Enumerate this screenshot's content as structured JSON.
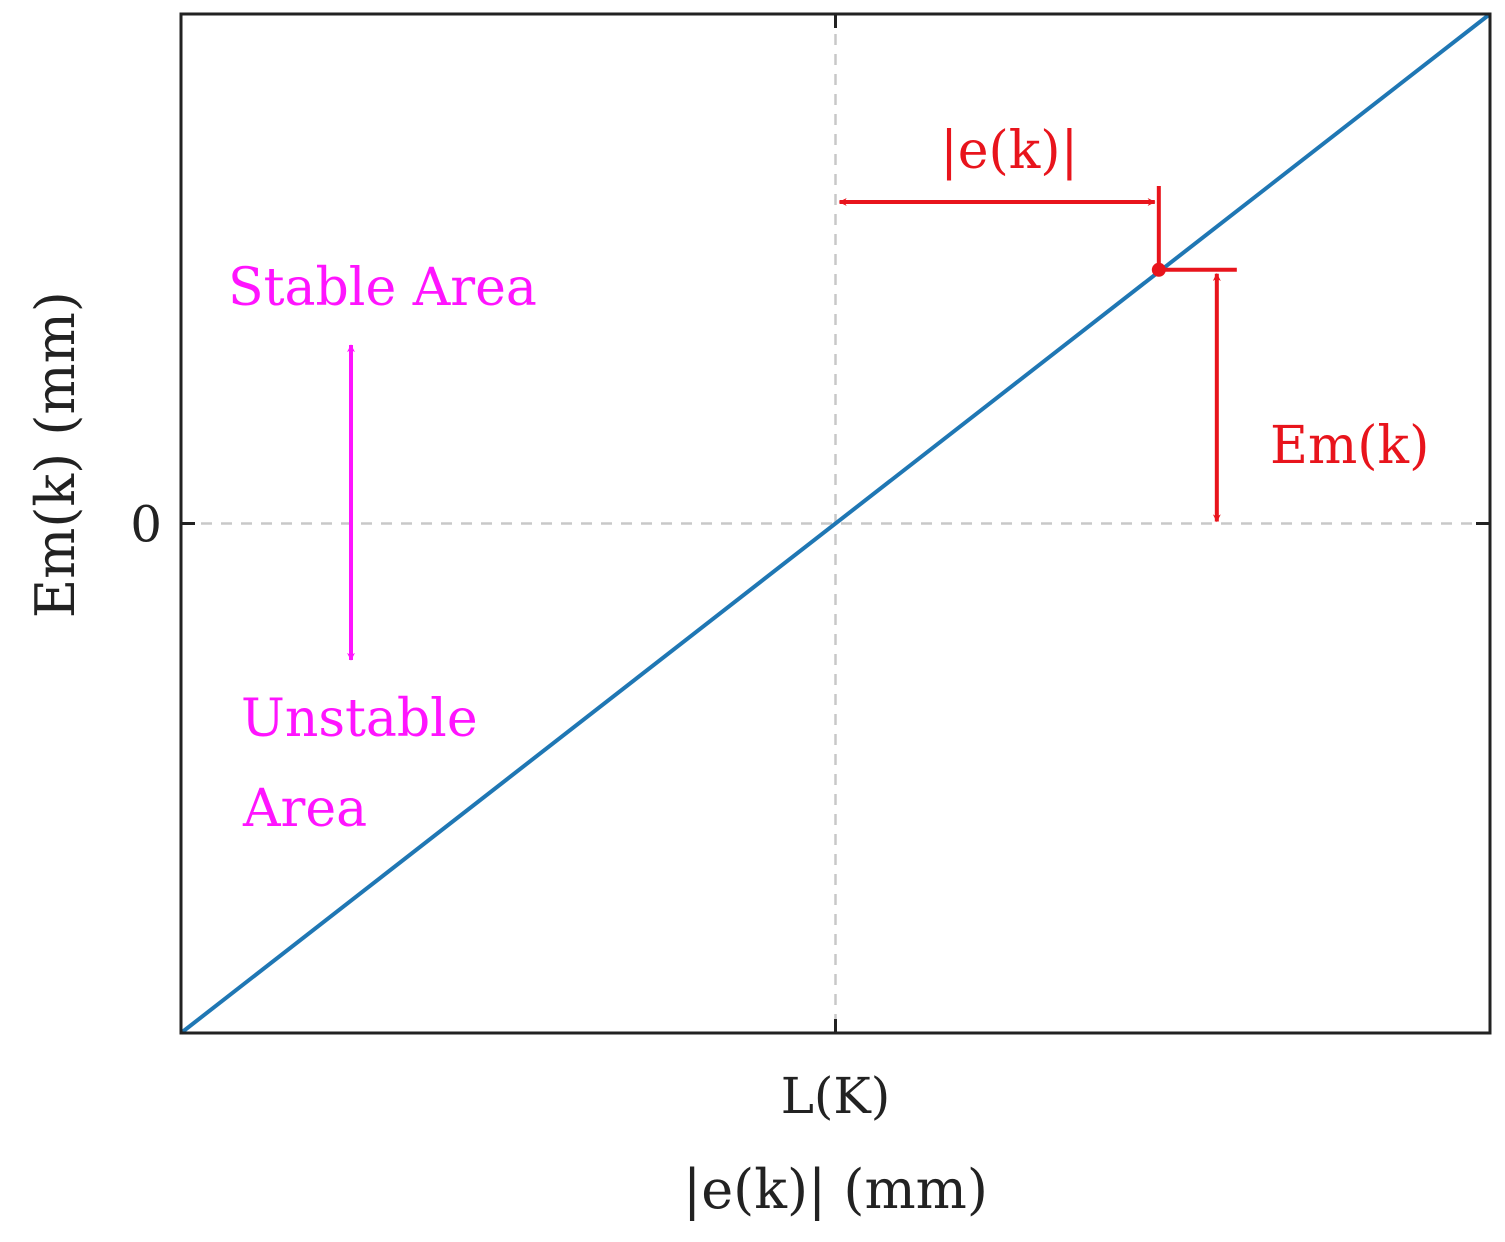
{
  "chart_data": {
    "type": "line",
    "title": "",
    "xlabel": "|e(k)| (mm)",
    "ylabel": "Em(k) (mm)",
    "xlim": [
      -1,
      1
    ],
    "ylim": [
      -1,
      1
    ],
    "x_ticks": [
      {
        "value": 0,
        "label": "L(K)"
      }
    ],
    "y_ticks": [
      {
        "value": 0,
        "label": "0"
      }
    ],
    "grid": "dashed reference lines at x = 0 and y = 0",
    "series": [
      {
        "color": "#1f77b4",
        "x": [
          -1,
          1
        ],
        "y": [
          -1,
          1
        ]
      }
    ],
    "point": {
      "x": 0.494,
      "y": 0.498,
      "color": "#e8141c"
    },
    "annotations": {
      "e_label": "|e(k)|",
      "em_label": "Em(k)",
      "stable_label": "Stable Area",
      "unstable_label_line1": "Unstable",
      "unstable_label_line2": "Area",
      "red": "#e8141c",
      "magenta": "#ff14ff"
    }
  }
}
